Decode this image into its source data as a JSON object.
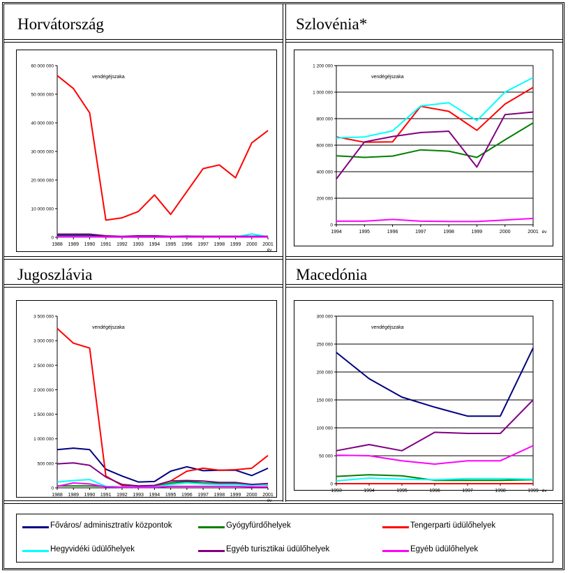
{
  "chart_data": [
    {
      "type": "line",
      "title": "Horvátország",
      "annotation": "vendégéjszaka",
      "xunit": "év",
      "x": [
        "1988",
        "1989",
        "1990",
        "1991",
        "1992",
        "1993",
        "1994",
        "1995",
        "1996",
        "1997",
        "1998",
        "1999",
        "2000",
        "2001"
      ],
      "ylim": [
        0,
        60000000
      ],
      "yticks": [
        0,
        10000000,
        20000000,
        30000000,
        40000000,
        50000000,
        60000000
      ],
      "ytick_labels": [
        "0",
        "10 000 000",
        "20 000 000",
        "30 000 000",
        "40 000 000",
        "50 000 000",
        "60 000 000"
      ],
      "grid": false,
      "series": [
        {
          "name": "Főváros/ adminisztratív központok",
          "color": "#000080",
          "values": [
            800000,
            800000,
            800000,
            400000,
            200000,
            300000,
            300000,
            200000,
            300000,
            300000,
            300000,
            300000,
            300000,
            300000
          ]
        },
        {
          "name": "Gyógyfürdőhelyek",
          "color": "#008000",
          "values": [
            300000,
            300000,
            300000,
            150000,
            100000,
            100000,
            100000,
            100000,
            150000,
            150000,
            150000,
            150000,
            150000,
            150000
          ]
        },
        {
          "name": "Tengerparti üdülőhelyek",
          "color": "#FF0000",
          "values": [
            56500000,
            52000000,
            43500000,
            6000000,
            6800000,
            9000000,
            14800000,
            8000000,
            16000000,
            24000000,
            25300000,
            20800000,
            33000000,
            37300000
          ]
        },
        {
          "name": "Hegyvidéki üdülőhelyek",
          "color": "#00FFFF",
          "values": [
            200000,
            200000,
            200000,
            100000,
            100000,
            100000,
            100000,
            100000,
            100000,
            100000,
            100000,
            100000,
            1200000,
            200000
          ]
        },
        {
          "name": "Egyéb turisztikai üdülőhelyek",
          "color": "#800080",
          "values": [
            1100000,
            1100000,
            1100000,
            500000,
            300000,
            500000,
            500000,
            300000,
            400000,
            300000,
            300000,
            300000,
            300000,
            300000
          ]
        },
        {
          "name": "Egyéb üdülőhelyek",
          "color": "#FF00FF",
          "values": [
            200000,
            200000,
            200000,
            100000,
            100000,
            100000,
            100000,
            100000,
            100000,
            100000,
            100000,
            100000,
            100000,
            100000
          ]
        }
      ]
    },
    {
      "type": "line",
      "title": "Szlovénia*",
      "annotation": "vendégéjszaka",
      "xunit": "év",
      "x": [
        "1994",
        "1995",
        "1996",
        "1997",
        "1998",
        "1999",
        "2000",
        "2001"
      ],
      "ylim": [
        0,
        1200000
      ],
      "yticks": [
        0,
        200000,
        400000,
        600000,
        800000,
        1000000,
        1200000
      ],
      "ytick_labels": [
        "0",
        "200 000",
        "400 000",
        "600 000",
        "800 000",
        "1 000 000",
        "1 200 000"
      ],
      "grid": true,
      "series": [
        {
          "name": "Gyógyfürdőhelyek",
          "color": "#008000",
          "values": [
            520000,
            508000,
            518000,
            565000,
            555000,
            508000,
            640000,
            768000
          ]
        },
        {
          "name": "Tengerparti üdülőhelyek",
          "color": "#FF0000",
          "values": [
            662000,
            622000,
            625000,
            893000,
            855000,
            712000,
            910000,
            1035000
          ]
        },
        {
          "name": "Hegyvidéki üdülőhelyek",
          "color": "#00FFFF",
          "values": [
            655000,
            662000,
            708000,
            895000,
            920000,
            785000,
            1000000,
            1110000
          ]
        },
        {
          "name": "Egyéb turisztikai üdülőhelyek",
          "color": "#800080",
          "values": [
            345000,
            625000,
            665000,
            695000,
            705000,
            435000,
            830000,
            850000
          ]
        },
        {
          "name": "Egyéb üdülőhelyek",
          "color": "#FF00FF",
          "values": [
            27000,
            27000,
            40000,
            27000,
            24000,
            24000,
            35000,
            48000
          ]
        }
      ]
    },
    {
      "type": "line",
      "title": "Jugoszlávia",
      "annotation": "vendégéjszaka",
      "xunit": "év",
      "x": [
        "1988",
        "1989",
        "1990",
        "1991",
        "1992",
        "1993",
        "1994",
        "1995",
        "1996",
        "1997",
        "1998",
        "1999",
        "2000",
        "2001"
      ],
      "ylim": [
        0,
        3500000
      ],
      "yticks": [
        0,
        500000,
        1000000,
        1500000,
        2000000,
        2500000,
        3000000,
        3500000
      ],
      "ytick_labels": [
        "0",
        "500 000",
        "1 000 000",
        "1 500 000",
        "2 000 000",
        "2 500 000",
        "3 000 000",
        "3 500 000"
      ],
      "grid": false,
      "series": [
        {
          "name": "Főváros/ adminisztratív központok",
          "color": "#000080",
          "values": [
            780000,
            810000,
            780000,
            380000,
            240000,
            120000,
            130000,
            340000,
            430000,
            350000,
            360000,
            360000,
            250000,
            400000
          ]
        },
        {
          "name": "Gyógyfürdőhelyek",
          "color": "#008000",
          "values": [
            40000,
            40000,
            40000,
            30000,
            20000,
            20000,
            20000,
            100000,
            130000,
            100000,
            90000,
            90000,
            60000,
            60000
          ]
        },
        {
          "name": "Tengerparti üdülőhelyek",
          "color": "#FF0000",
          "values": [
            3250000,
            2950000,
            2850000,
            240000,
            50000,
            20000,
            40000,
            140000,
            340000,
            400000,
            360000,
            370000,
            400000,
            660000
          ]
        },
        {
          "name": "Hegyvidéki üdülőhelyek",
          "color": "#00FFFF",
          "values": [
            120000,
            150000,
            170000,
            30000,
            20000,
            20000,
            20000,
            70000,
            100000,
            80000,
            70000,
            70000,
            50000,
            70000
          ]
        },
        {
          "name": "Egyéb turisztikai üdülőhelyek",
          "color": "#800080",
          "values": [
            490000,
            510000,
            460000,
            220000,
            70000,
            40000,
            50000,
            140000,
            150000,
            140000,
            110000,
            110000,
            70000,
            90000
          ]
        },
        {
          "name": "Egyéb üdülőhelyek",
          "color": "#FF00FF",
          "values": [
            30000,
            100000,
            80000,
            20000,
            10000,
            10000,
            10000,
            30000,
            30000,
            30000,
            30000,
            30000,
            20000,
            20000
          ]
        }
      ]
    },
    {
      "type": "line",
      "title": "Macedónia",
      "annotation": "vendégéjszaka",
      "xunit": "év",
      "x": [
        "1993",
        "1994",
        "1995",
        "1996",
        "1997",
        "1998",
        "1999"
      ],
      "ylim": [
        0,
        300000
      ],
      "yticks": [
        0,
        50000,
        100000,
        150000,
        200000,
        250000,
        300000
      ],
      "ytick_labels": [
        "0",
        "50 000",
        "100 000",
        "150 000",
        "200 000",
        "250 000",
        "300 000"
      ],
      "grid": true,
      "series": [
        {
          "name": "Főváros/ adminisztratív központok",
          "color": "#000080",
          "values": [
            235000,
            188000,
            155000,
            137000,
            121000,
            121000,
            243000
          ]
        },
        {
          "name": "Gyógyfürdőhelyek",
          "color": "#008000",
          "values": [
            13000,
            16000,
            14000,
            6000,
            6000,
            6000,
            7000
          ]
        },
        {
          "name": "Tengerparti üdülőhelyek",
          "color": "#FF0000",
          "values": [
            0,
            0,
            0,
            0,
            0,
            0,
            0
          ]
        },
        {
          "name": "Hegyvidéki üdülőhelyek",
          "color": "#00FFFF",
          "values": [
            5000,
            10000,
            8000,
            7000,
            9000,
            9000,
            8000
          ]
        },
        {
          "name": "Egyéb turisztikai üdülőhelyek",
          "color": "#800080",
          "values": [
            59000,
            70000,
            59000,
            92000,
            90000,
            90000,
            150000
          ]
        },
        {
          "name": "Egyéb üdülőhelyek",
          "color": "#FF00FF",
          "values": [
            51000,
            50000,
            41000,
            35000,
            41000,
            41000,
            68000
          ]
        }
      ]
    }
  ],
  "legend": [
    {
      "label": "Főváros/ adminisztratív központok",
      "color": "#000080"
    },
    {
      "label": "Gyógyfürdőhelyek",
      "color": "#008000"
    },
    {
      "label": "Tengerparti üdülőhelyek",
      "color": "#FF0000"
    },
    {
      "label": "Hegyvidéki üdülőhelyek",
      "color": "#00FFFF"
    },
    {
      "label": "Egyéb turisztikai üdülőhelyek",
      "color": "#800080"
    },
    {
      "label": "Egyéb üdülőhelyek",
      "color": "#FF00FF"
    }
  ]
}
